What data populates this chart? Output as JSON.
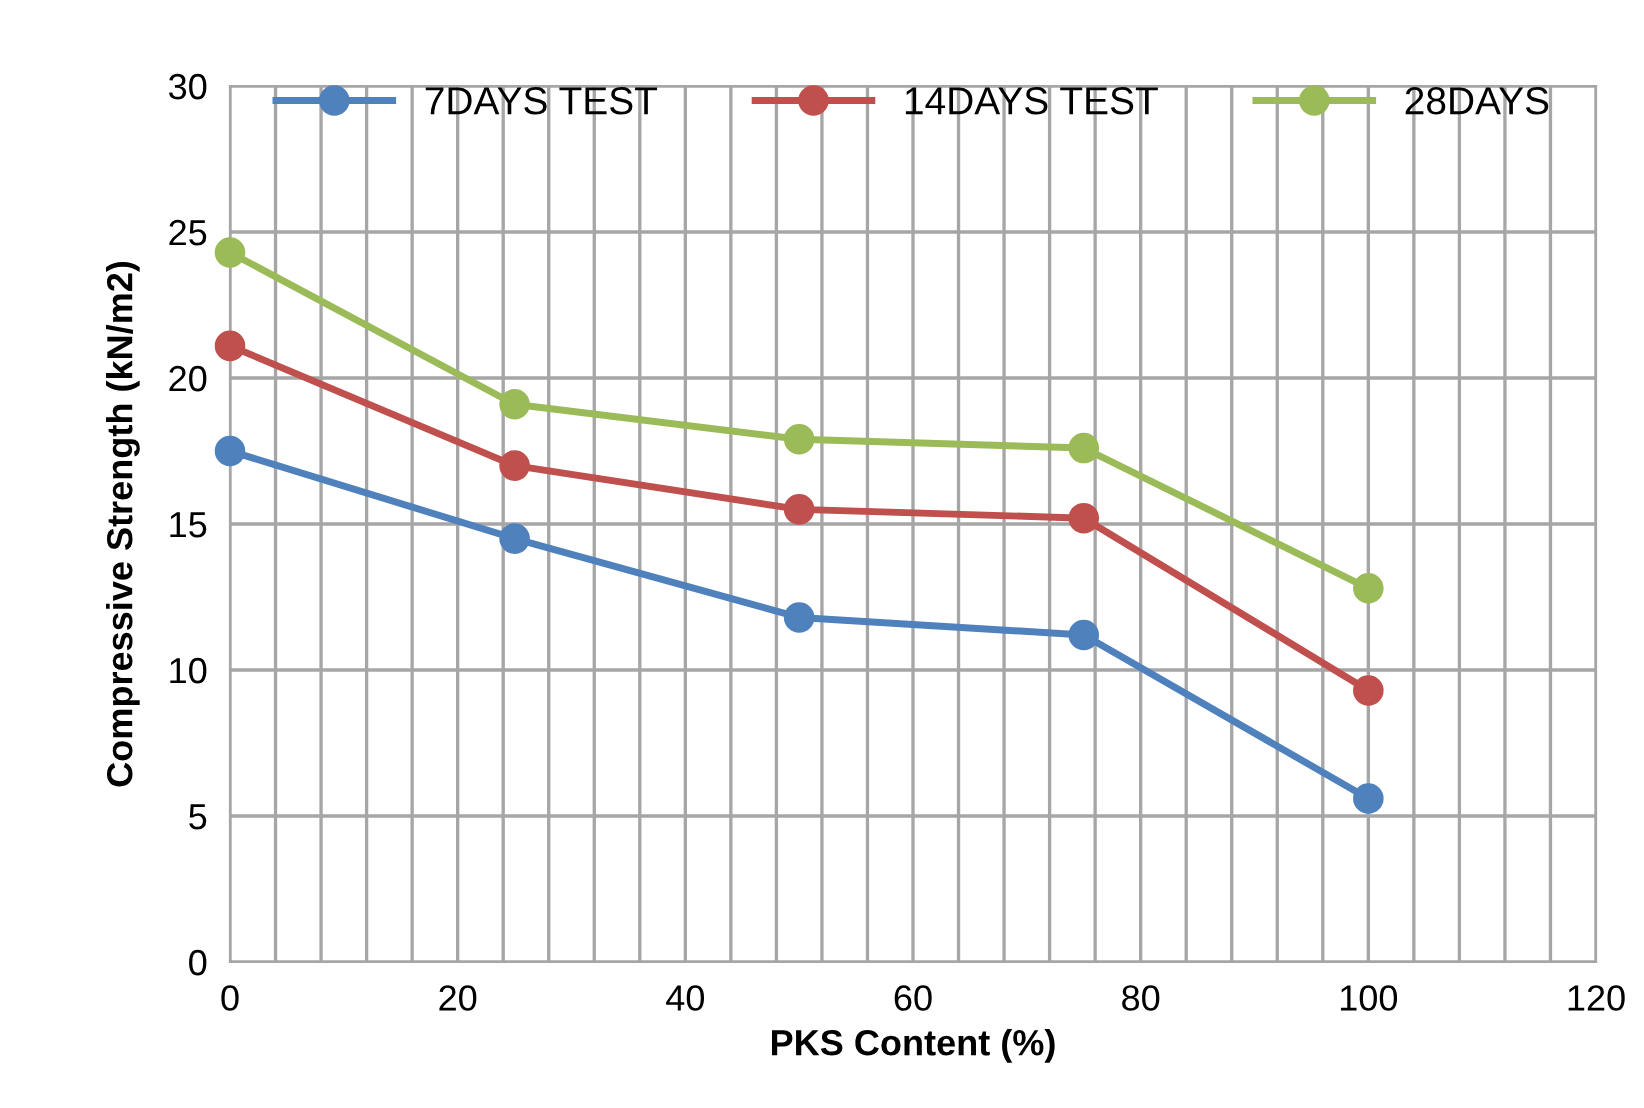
{
  "chart_data": {
    "type": "line",
    "xlabel": "PKS Content (%)",
    "ylabel": "Compressive Strength (kN/m2)",
    "x": [
      0,
      25,
      50,
      75,
      100
    ],
    "series": [
      {
        "name": "7DAYS TEST",
        "color": "#4f81bd",
        "values": [
          17.5,
          14.5,
          11.8,
          11.2,
          5.6
        ]
      },
      {
        "name": "14DAYS TEST",
        "color": "#c0504d",
        "values": [
          21.1,
          17.0,
          15.5,
          15.2,
          9.3
        ]
      },
      {
        "name": "28DAYS",
        "color": "#9bbb59",
        "values": [
          24.3,
          19.1,
          17.9,
          17.6,
          12.8
        ]
      }
    ],
    "xlim": [
      0,
      120
    ],
    "ylim": [
      0,
      30
    ],
    "xticks": [
      0,
      {
        "value": 4,
        "label": null
      },
      {
        "value": 8,
        "label": null
      },
      {
        "value": 12,
        "label": null
      },
      {
        "value": 16,
        "label": null
      },
      20,
      {
        "value": 24,
        "label": null
      },
      {
        "value": 28,
        "label": null
      },
      {
        "value": 32,
        "label": null
      },
      {
        "value": 36,
        "label": null
      },
      40,
      {
        "value": 44,
        "label": null
      },
      {
        "value": 48,
        "label": null
      },
      {
        "value": 52,
        "label": null
      },
      {
        "value": 56,
        "label": null
      },
      60,
      {
        "value": 64,
        "label": null
      },
      {
        "value": 68,
        "label": null
      },
      {
        "value": 72,
        "label": null
      },
      {
        "value": 76,
        "label": null
      },
      80,
      {
        "value": 84,
        "label": null
      },
      {
        "value": 88,
        "label": null
      },
      {
        "value": 92,
        "label": null
      },
      {
        "value": 96,
        "label": null
      },
      100,
      {
        "value": 104,
        "label": null
      },
      {
        "value": 108,
        "label": null
      },
      {
        "value": 112,
        "label": null
      },
      {
        "value": 116,
        "label": null
      },
      120
    ],
    "yticks": [
      0,
      5,
      10,
      15,
      20,
      25,
      30
    ],
    "grid": true,
    "legend": "top",
    "marker": "circle",
    "line_style": "solid"
  }
}
